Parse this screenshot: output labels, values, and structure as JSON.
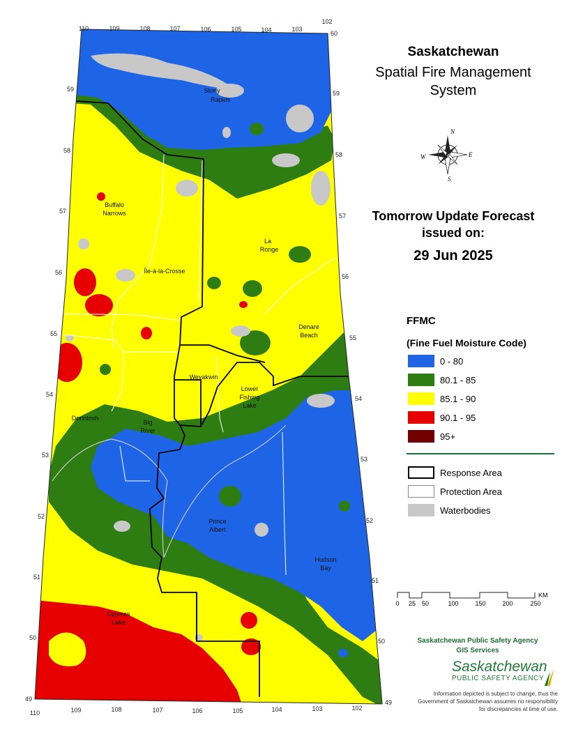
{
  "title": {
    "line1": "Saskatchewan",
    "line2": "Spatial Fire Management",
    "line3": "System"
  },
  "forecast": {
    "line1": "Tomorrow Update Forecast",
    "line2": "issued on:",
    "date": "29 Jun 2025"
  },
  "compass": {
    "n": "N",
    "e": "E",
    "w": "W",
    "s": "S",
    "icon": "compass-rose-icon"
  },
  "legend": {
    "title": "FFMC",
    "subtitle": "(Fine Fuel Moisture Code)",
    "classes": [
      {
        "label": "0 - 80",
        "color": "#1e64e6"
      },
      {
        "label": "80.1 - 85",
        "color": "#2e7d12"
      },
      {
        "label": "85.1 - 90",
        "color": "#ffff00"
      },
      {
        "label": "90.1 - 95",
        "color": "#e60000"
      },
      {
        "label": "95+",
        "color": "#730000"
      }
    ],
    "features": [
      {
        "label": "Response Area"
      },
      {
        "label": "Protection Area"
      },
      {
        "label": "Waterbodies",
        "color": "#c8c8c8"
      }
    ]
  },
  "scale": {
    "unit": "KM",
    "ticks": [
      "0",
      "25",
      "50",
      "100",
      "150",
      "200",
      "250"
    ]
  },
  "longitudes": {
    "top": [
      "110",
      "109",
      "108",
      "107",
      "106",
      "105",
      "104",
      "103",
      "102"
    ],
    "bottom": [
      "110",
      "109",
      "108",
      "107",
      "106",
      "105",
      "104",
      "103",
      "102"
    ]
  },
  "latitudes": {
    "left": [
      "59",
      "58",
      "57",
      "56",
      "55",
      "54",
      "53",
      "52",
      "51",
      "50",
      "49"
    ],
    "right": [
      "60",
      "59",
      "58",
      "57",
      "56",
      "55",
      "54",
      "53",
      "52",
      "51",
      "50",
      "49"
    ]
  },
  "places": [
    {
      "name": "Stony",
      "name2": "Rapids"
    },
    {
      "name": "Buffalo",
      "name2": "Narrows"
    },
    {
      "name": "La",
      "name2": "Ronge"
    },
    {
      "name": "Île-à-la-Crosse",
      "name2": ""
    },
    {
      "name": "Denare",
      "name2": "Beach"
    },
    {
      "name": "Weyakwin",
      "name2": ""
    },
    {
      "name": "Lower",
      "name2": "Fishing",
      "name3": "Lake"
    },
    {
      "name": "Dorintosh",
      "name2": ""
    },
    {
      "name": "Big",
      "name2": "River"
    },
    {
      "name": "Prince",
      "name2": "Albert"
    },
    {
      "name": "Hudson",
      "name2": "Bay"
    },
    {
      "name": "Cypress",
      "name2": "Lake"
    }
  ],
  "agency": {
    "line1": "Saskatchewan Public Safety Agency",
    "line2": "GIS  Services",
    "logo_main": "Saskatchewan",
    "logo_sub": "PUBLIC SAFETY AGENCY",
    "disclaimer": "Information depicted is subject to change, thus the Government of Saskatchewan assumes no responsibility for discrepancies at time of use."
  }
}
